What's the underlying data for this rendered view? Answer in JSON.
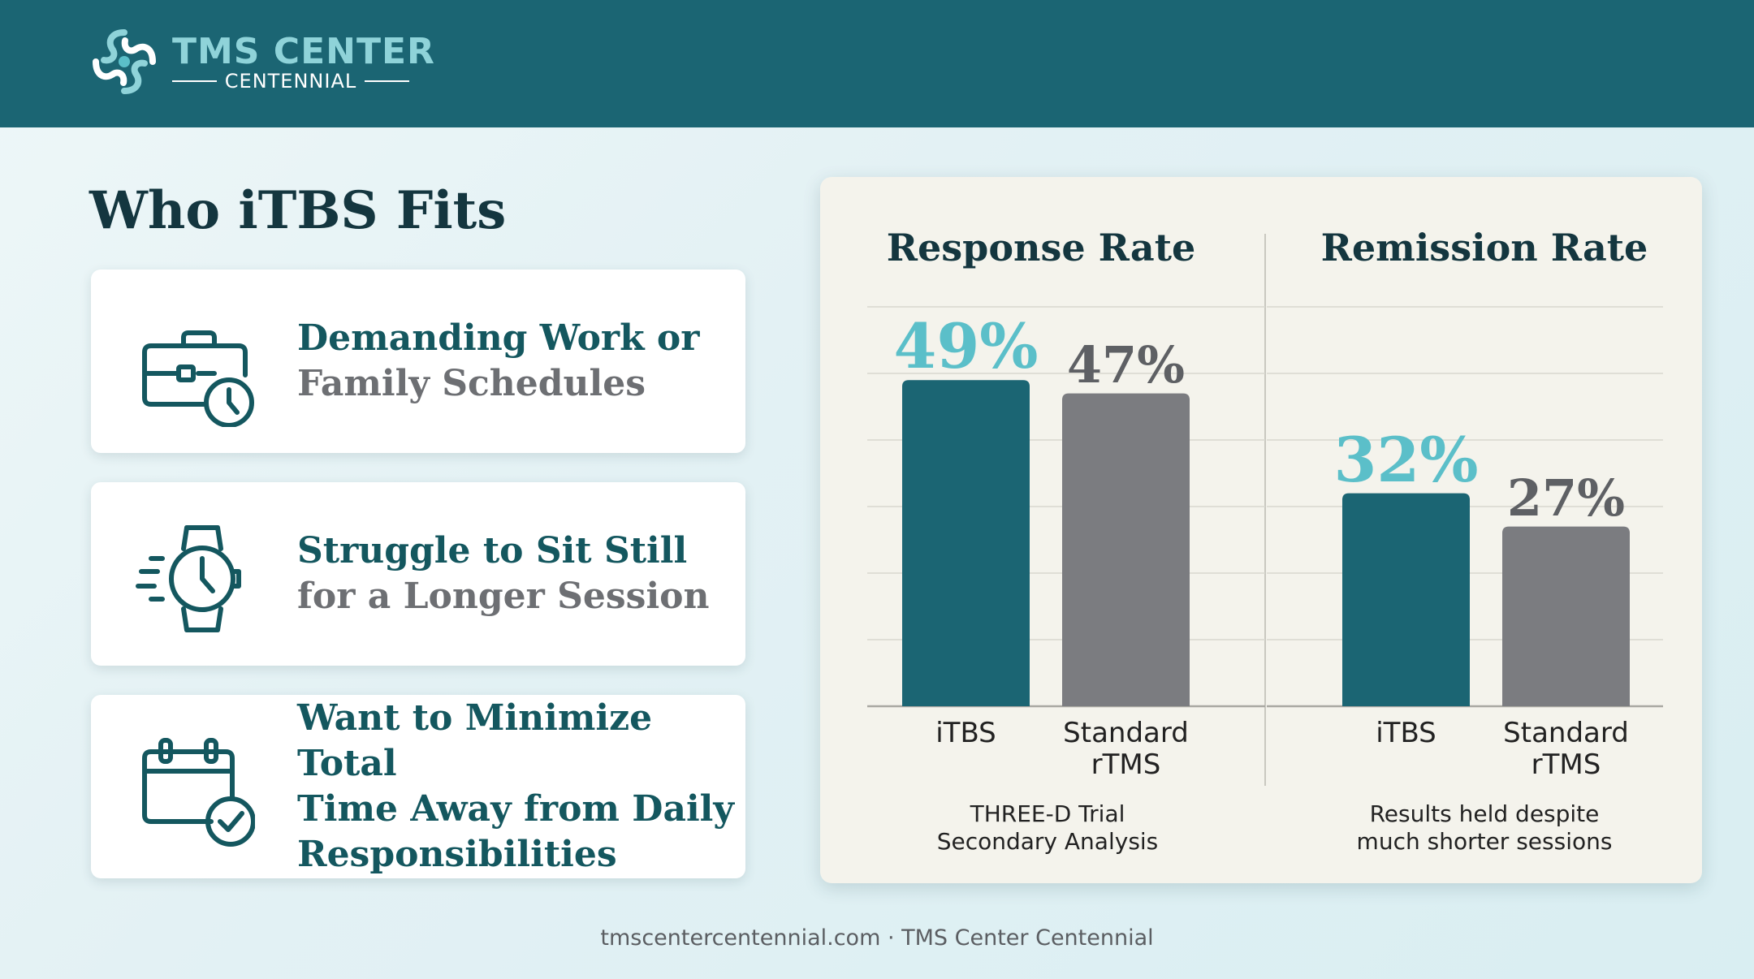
{
  "brand": {
    "name": "TMS CENTER",
    "subname": "CENTENNIAL",
    "colors": {
      "header": "#1b6573",
      "accent": "#8fd3d9"
    }
  },
  "section": {
    "title": "Who iTBS Fits"
  },
  "cards": [
    {
      "icon": "briefcase-clock-icon",
      "line1": "Demanding Work or",
      "line2": "Family Schedules"
    },
    {
      "icon": "watch-icon",
      "line1": "Struggle to Sit Still",
      "line2": "for a Longer Session"
    },
    {
      "icon": "calendar-check-icon",
      "line1": "Want to Minimize Total",
      "line2": "Time Away from Daily",
      "line3": "Responsibilities"
    }
  ],
  "chart_data": [
    {
      "type": "bar",
      "title": "Response Rate",
      "categories": [
        "iTBS",
        "Standard rTMS"
      ],
      "values": [
        49,
        47
      ],
      "value_labels": [
        "49%",
        "47%"
      ],
      "category_labels": [
        [
          "iTBS"
        ],
        [
          "Standard",
          "rTMS"
        ]
      ],
      "note": [
        "THREE-D Trial",
        "Secondary Analysis"
      ],
      "colors": [
        "#1b6573",
        "#7b7c80"
      ],
      "ylim": [
        0,
        60
      ],
      "grid": true
    },
    {
      "type": "bar",
      "title": "Remission Rate",
      "categories": [
        "iTBS",
        "Standard rTMS"
      ],
      "values": [
        32,
        27
      ],
      "value_labels": [
        "32%",
        "27%"
      ],
      "category_labels": [
        [
          "iTBS"
        ],
        [
          "Standard",
          "rTMS"
        ]
      ],
      "note": [
        "Results held despite",
        "much shorter sessions"
      ],
      "colors": [
        "#1b6573",
        "#7b7c80"
      ],
      "ylim": [
        0,
        60
      ],
      "grid": true
    }
  ],
  "footer": {
    "text": "tmscentercentennial.com · TMS Center Centennial"
  }
}
